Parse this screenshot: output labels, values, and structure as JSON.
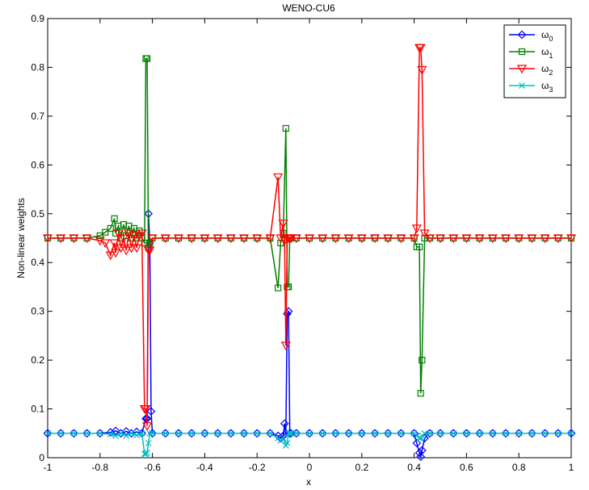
{
  "chart_data": {
    "type": "line",
    "title": "WENO-CU6",
    "xlabel": "x",
    "ylabel": "Non-linear weights",
    "xlim": [
      -1,
      1
    ],
    "ylim": [
      0,
      0.9
    ],
    "xticks": [
      "-1",
      "-0.8",
      "-0.6",
      "-0.4",
      "-0.2",
      "0",
      "0.2",
      "0.4",
      "0.6",
      "0.8",
      "1"
    ],
    "xtick_values": [
      -1,
      -0.8,
      -0.6,
      -0.4,
      -0.2,
      0,
      0.2,
      0.4,
      0.6,
      0.8,
      1
    ],
    "yticks": [
      "0",
      "0.1",
      "0.2",
      "0.3",
      "0.4",
      "0.5",
      "0.6",
      "0.7",
      "0.8",
      "0.9"
    ],
    "ytick_values": [
      0,
      0.1,
      0.2,
      0.3,
      0.4,
      0.5,
      0.6,
      0.7,
      0.8,
      0.9
    ],
    "grid": false,
    "legend_position": "top-right",
    "series": [
      {
        "name": "ω0",
        "label_base": "ω",
        "label_sub": "0",
        "color": "#0000ff",
        "marker": "diamond",
        "x": [
          -1,
          -0.95,
          -0.9,
          -0.85,
          -0.8,
          -0.76,
          -0.74,
          -0.72,
          -0.7,
          -0.68,
          -0.66,
          -0.64,
          -0.625,
          -0.62,
          -0.615,
          -0.61,
          -0.605,
          -0.6,
          -0.55,
          -0.5,
          -0.45,
          -0.4,
          -0.35,
          -0.3,
          -0.25,
          -0.2,
          -0.15,
          -0.12,
          -0.11,
          -0.1,
          -0.095,
          -0.09,
          -0.085,
          -0.08,
          -0.075,
          -0.07,
          -0.05,
          0,
          0.05,
          0.1,
          0.15,
          0.2,
          0.25,
          0.3,
          0.35,
          0.4,
          0.41,
          0.42,
          0.425,
          0.43,
          0.44,
          0.46,
          0.5,
          0.55,
          0.6,
          0.65,
          0.7,
          0.75,
          0.8,
          0.85,
          0.9,
          0.95,
          1
        ],
        "y": [
          0.05,
          0.05,
          0.05,
          0.05,
          0.05,
          0.052,
          0.055,
          0.05,
          0.054,
          0.05,
          0.053,
          0.05,
          0.08,
          0.08,
          0.5,
          0.44,
          0.095,
          0.05,
          0.05,
          0.05,
          0.05,
          0.05,
          0.05,
          0.05,
          0.05,
          0.05,
          0.05,
          0.045,
          0.04,
          0.045,
          0.07,
          0.05,
          0.295,
          0.3,
          0.05,
          0.05,
          0.05,
          0.05,
          0.05,
          0.05,
          0.05,
          0.05,
          0.05,
          0.05,
          0.05,
          0.05,
          0.03,
          0.01,
          0.002,
          0.015,
          0.04,
          0.05,
          0.05,
          0.05,
          0.05,
          0.05,
          0.05,
          0.05,
          0.05,
          0.05,
          0.05,
          0.05,
          0.05
        ]
      },
      {
        "name": "ω1",
        "label_base": "ω",
        "label_sub": "1",
        "color": "#008000",
        "marker": "square",
        "x": [
          -1,
          -0.95,
          -0.9,
          -0.85,
          -0.8,
          -0.78,
          -0.76,
          -0.745,
          -0.74,
          -0.73,
          -0.72,
          -0.71,
          -0.7,
          -0.69,
          -0.68,
          -0.67,
          -0.66,
          -0.65,
          -0.64,
          -0.63,
          -0.625,
          -0.62,
          -0.615,
          -0.61,
          -0.6,
          -0.55,
          -0.5,
          -0.45,
          -0.4,
          -0.35,
          -0.3,
          -0.25,
          -0.2,
          -0.15,
          -0.12,
          -0.11,
          -0.1,
          -0.09,
          -0.085,
          -0.08,
          -0.075,
          -0.07,
          -0.05,
          0,
          0.05,
          0.1,
          0.15,
          0.2,
          0.25,
          0.3,
          0.35,
          0.4,
          0.41,
          0.42,
          0.425,
          0.43,
          0.44,
          0.46,
          0.5,
          0.55,
          0.6,
          0.65,
          0.7,
          0.75,
          0.8,
          0.85,
          0.9,
          0.95,
          1
        ],
        "y": [
          0.45,
          0.45,
          0.45,
          0.45,
          0.455,
          0.462,
          0.47,
          0.49,
          0.46,
          0.475,
          0.45,
          0.478,
          0.455,
          0.475,
          0.45,
          0.47,
          0.45,
          0.465,
          0.45,
          0.44,
          0.818,
          0.818,
          0.43,
          0.44,
          0.45,
          0.45,
          0.45,
          0.45,
          0.45,
          0.45,
          0.45,
          0.45,
          0.45,
          0.45,
          0.348,
          0.44,
          0.46,
          0.675,
          0.35,
          0.35,
          0.45,
          0.45,
          0.45,
          0.45,
          0.45,
          0.45,
          0.45,
          0.45,
          0.45,
          0.45,
          0.45,
          0.45,
          0.432,
          0.432,
          0.132,
          0.2,
          0.45,
          0.45,
          0.45,
          0.45,
          0.45,
          0.45,
          0.45,
          0.45,
          0.45,
          0.45,
          0.45,
          0.45,
          0.45
        ]
      },
      {
        "name": "ω2",
        "label_base": "ω",
        "label_sub": "2",
        "color": "#ff0000",
        "marker": "triangle-down",
        "x": [
          -1,
          -0.95,
          -0.9,
          -0.85,
          -0.8,
          -0.78,
          -0.76,
          -0.745,
          -0.74,
          -0.73,
          -0.72,
          -0.71,
          -0.7,
          -0.69,
          -0.68,
          -0.67,
          -0.66,
          -0.65,
          -0.64,
          -0.63,
          -0.625,
          -0.62,
          -0.615,
          -0.61,
          -0.6,
          -0.55,
          -0.5,
          -0.45,
          -0.4,
          -0.35,
          -0.3,
          -0.25,
          -0.2,
          -0.15,
          -0.12,
          -0.11,
          -0.1,
          -0.095,
          -0.09,
          -0.085,
          -0.08,
          -0.075,
          -0.07,
          -0.05,
          0,
          0.05,
          0.1,
          0.15,
          0.2,
          0.25,
          0.3,
          0.35,
          0.4,
          0.41,
          0.42,
          0.425,
          0.43,
          0.44,
          0.46,
          0.5,
          0.55,
          0.6,
          0.65,
          0.7,
          0.75,
          0.8,
          0.85,
          0.9,
          0.95,
          1
        ],
        "y": [
          0.45,
          0.45,
          0.45,
          0.45,
          0.445,
          0.44,
          0.415,
          0.44,
          0.42,
          0.46,
          0.43,
          0.45,
          0.425,
          0.46,
          0.43,
          0.455,
          0.43,
          0.455,
          0.46,
          0.1,
          0.1,
          0.065,
          0.425,
          0.425,
          0.45,
          0.45,
          0.45,
          0.45,
          0.45,
          0.45,
          0.45,
          0.45,
          0.45,
          0.45,
          0.575,
          0.45,
          0.48,
          0.445,
          0.23,
          0.45,
          0.45,
          0.45,
          0.45,
          0.45,
          0.45,
          0.45,
          0.45,
          0.45,
          0.45,
          0.45,
          0.45,
          0.45,
          0.45,
          0.47,
          0.84,
          0.84,
          0.795,
          0.46,
          0.45,
          0.45,
          0.45,
          0.45,
          0.45,
          0.45,
          0.45,
          0.45,
          0.45,
          0.45,
          0.45,
          0.45
        ]
      },
      {
        "name": "ω3",
        "label_base": "ω",
        "label_sub": "3",
        "color": "#00bfbf",
        "marker": "x",
        "x": [
          -1,
          -0.95,
          -0.9,
          -0.85,
          -0.8,
          -0.76,
          -0.74,
          -0.72,
          -0.7,
          -0.68,
          -0.66,
          -0.64,
          -0.63,
          -0.625,
          -0.62,
          -0.615,
          -0.61,
          -0.6,
          -0.55,
          -0.5,
          -0.45,
          -0.4,
          -0.35,
          -0.3,
          -0.25,
          -0.2,
          -0.15,
          -0.12,
          -0.11,
          -0.1,
          -0.09,
          -0.085,
          -0.08,
          -0.075,
          -0.07,
          -0.05,
          0,
          0.05,
          0.1,
          0.15,
          0.2,
          0.25,
          0.3,
          0.35,
          0.4,
          0.41,
          0.42,
          0.425,
          0.43,
          0.44,
          0.46,
          0.5,
          0.55,
          0.6,
          0.65,
          0.7,
          0.75,
          0.8,
          0.85,
          0.9,
          0.95,
          1
        ],
        "y": [
          0.05,
          0.05,
          0.05,
          0.05,
          0.05,
          0.048,
          0.045,
          0.05,
          0.045,
          0.05,
          0.046,
          0.05,
          0.008,
          0.008,
          0.01,
          0.03,
          0.05,
          0.05,
          0.05,
          0.05,
          0.05,
          0.05,
          0.05,
          0.05,
          0.05,
          0.05,
          0.05,
          0.04,
          0.035,
          0.04,
          0.025,
          0.03,
          0.05,
          0.05,
          0.05,
          0.05,
          0.05,
          0.05,
          0.05,
          0.05,
          0.05,
          0.05,
          0.05,
          0.05,
          0.05,
          0.045,
          0.04,
          0.04,
          0.045,
          0.05,
          0.05,
          0.05,
          0.05,
          0.05,
          0.05,
          0.05,
          0.05,
          0.05,
          0.05,
          0.05,
          0.05,
          0.05
        ]
      }
    ]
  }
}
